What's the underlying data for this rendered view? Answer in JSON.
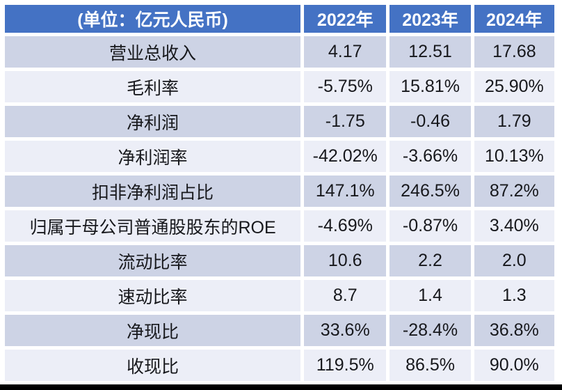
{
  "chart_data": {
    "type": "table",
    "title": "",
    "unit_label": "(单位：亿元人民币)",
    "columns": [
      "2022年",
      "2023年",
      "2024年"
    ],
    "rows": [
      {
        "label": "营业总收入",
        "values": [
          "4.17",
          "12.51",
          "17.68"
        ]
      },
      {
        "label": "毛利率",
        "values": [
          "-5.75%",
          "15.81%",
          "25.90%"
        ]
      },
      {
        "label": "净利润",
        "values": [
          "-1.75",
          "-0.46",
          "1.79"
        ]
      },
      {
        "label": "净利润率",
        "values": [
          "-42.02%",
          "-3.66%",
          "10.13%"
        ]
      },
      {
        "label": "扣非净利润占比",
        "values": [
          "147.1%",
          "246.5%",
          "87.2%"
        ]
      },
      {
        "label": "归属于母公司普通股股东的ROE",
        "values": [
          "-4.69%",
          "-0.87%",
          "3.40%"
        ]
      },
      {
        "label": "流动比率",
        "values": [
          "10.6",
          "2.2",
          "2.0"
        ]
      },
      {
        "label": "速动比率",
        "values": [
          "8.7",
          "1.4",
          "1.3"
        ]
      },
      {
        "label": "净现比",
        "values": [
          "33.6%",
          "-28.4%",
          "36.8%"
        ]
      },
      {
        "label": "收现比",
        "values": [
          "119.5%",
          "86.5%",
          "90.0%"
        ]
      }
    ],
    "layout_hints": {
      "banded_rows": true,
      "header_row": true,
      "grid": "white-gaps-between-cells"
    }
  },
  "colors": {
    "header_bg": "#4472c4",
    "header_text": "#ffffff",
    "band_dark": "#cdd3e5",
    "band_light": "#eceef7",
    "cell_text": "#17181c",
    "bottom_bar": "#000000"
  }
}
